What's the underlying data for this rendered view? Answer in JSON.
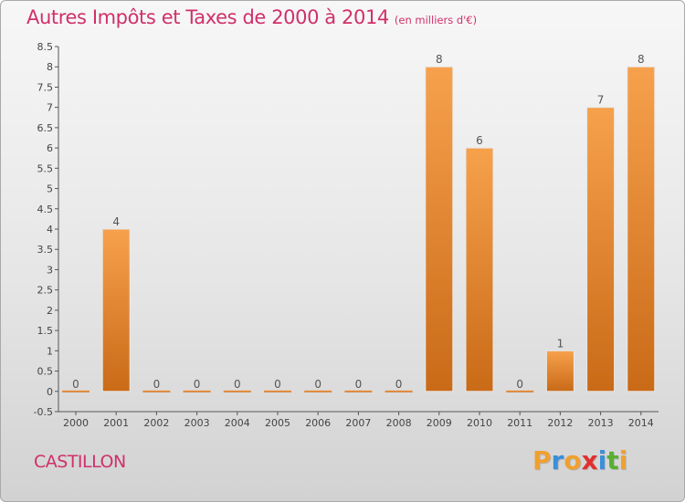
{
  "chart_data": {
    "type": "bar",
    "title": "Autres Impôts et Taxes de 2000 à 2014",
    "subtitle": "(en milliers d'€)",
    "categories": [
      "2000",
      "2001",
      "2002",
      "2003",
      "2004",
      "2005",
      "2006",
      "2007",
      "2008",
      "2009",
      "2010",
      "2011",
      "2012",
      "2013",
      "2014"
    ],
    "values": [
      0,
      4,
      0,
      0,
      0,
      0,
      0,
      0,
      0,
      8,
      6,
      0,
      1,
      7,
      8
    ],
    "value_labels": [
      "0",
      "4",
      "0",
      "0",
      "0",
      "0",
      "0",
      "0",
      "0",
      "8",
      "6",
      "0",
      "1",
      "7",
      "8"
    ],
    "ylim": [
      -0.5,
      8.5
    ],
    "yticks": [
      "-0.5",
      "0",
      "0.5",
      "1",
      "1.5",
      "2",
      "2.5",
      "3",
      "3.5",
      "4",
      "4.5",
      "5",
      "5.5",
      "6",
      "6.5",
      "7",
      "7.5",
      "8",
      "8.5"
    ],
    "ytick_values": [
      -0.5,
      0,
      0.5,
      1,
      1.5,
      2,
      2.5,
      3,
      3.5,
      4,
      4.5,
      5,
      5.5,
      6,
      6.5,
      7,
      7.5,
      8,
      8.5
    ],
    "grid": false,
    "colors": {
      "bar_light": "#f7a14d",
      "bar_dark": "#c96a17",
      "text": "#d0306a",
      "axis": "#555555"
    }
  },
  "commune": "CASTILLON",
  "logo": {
    "letters": [
      "P",
      "r",
      "o",
      "x",
      "i",
      "t",
      "i"
    ],
    "colors": [
      "#f0a030",
      "#3a8fd9",
      "#f0a030",
      "#e03030",
      "#3a8fd9",
      "#58b030",
      "#f0a030"
    ]
  }
}
